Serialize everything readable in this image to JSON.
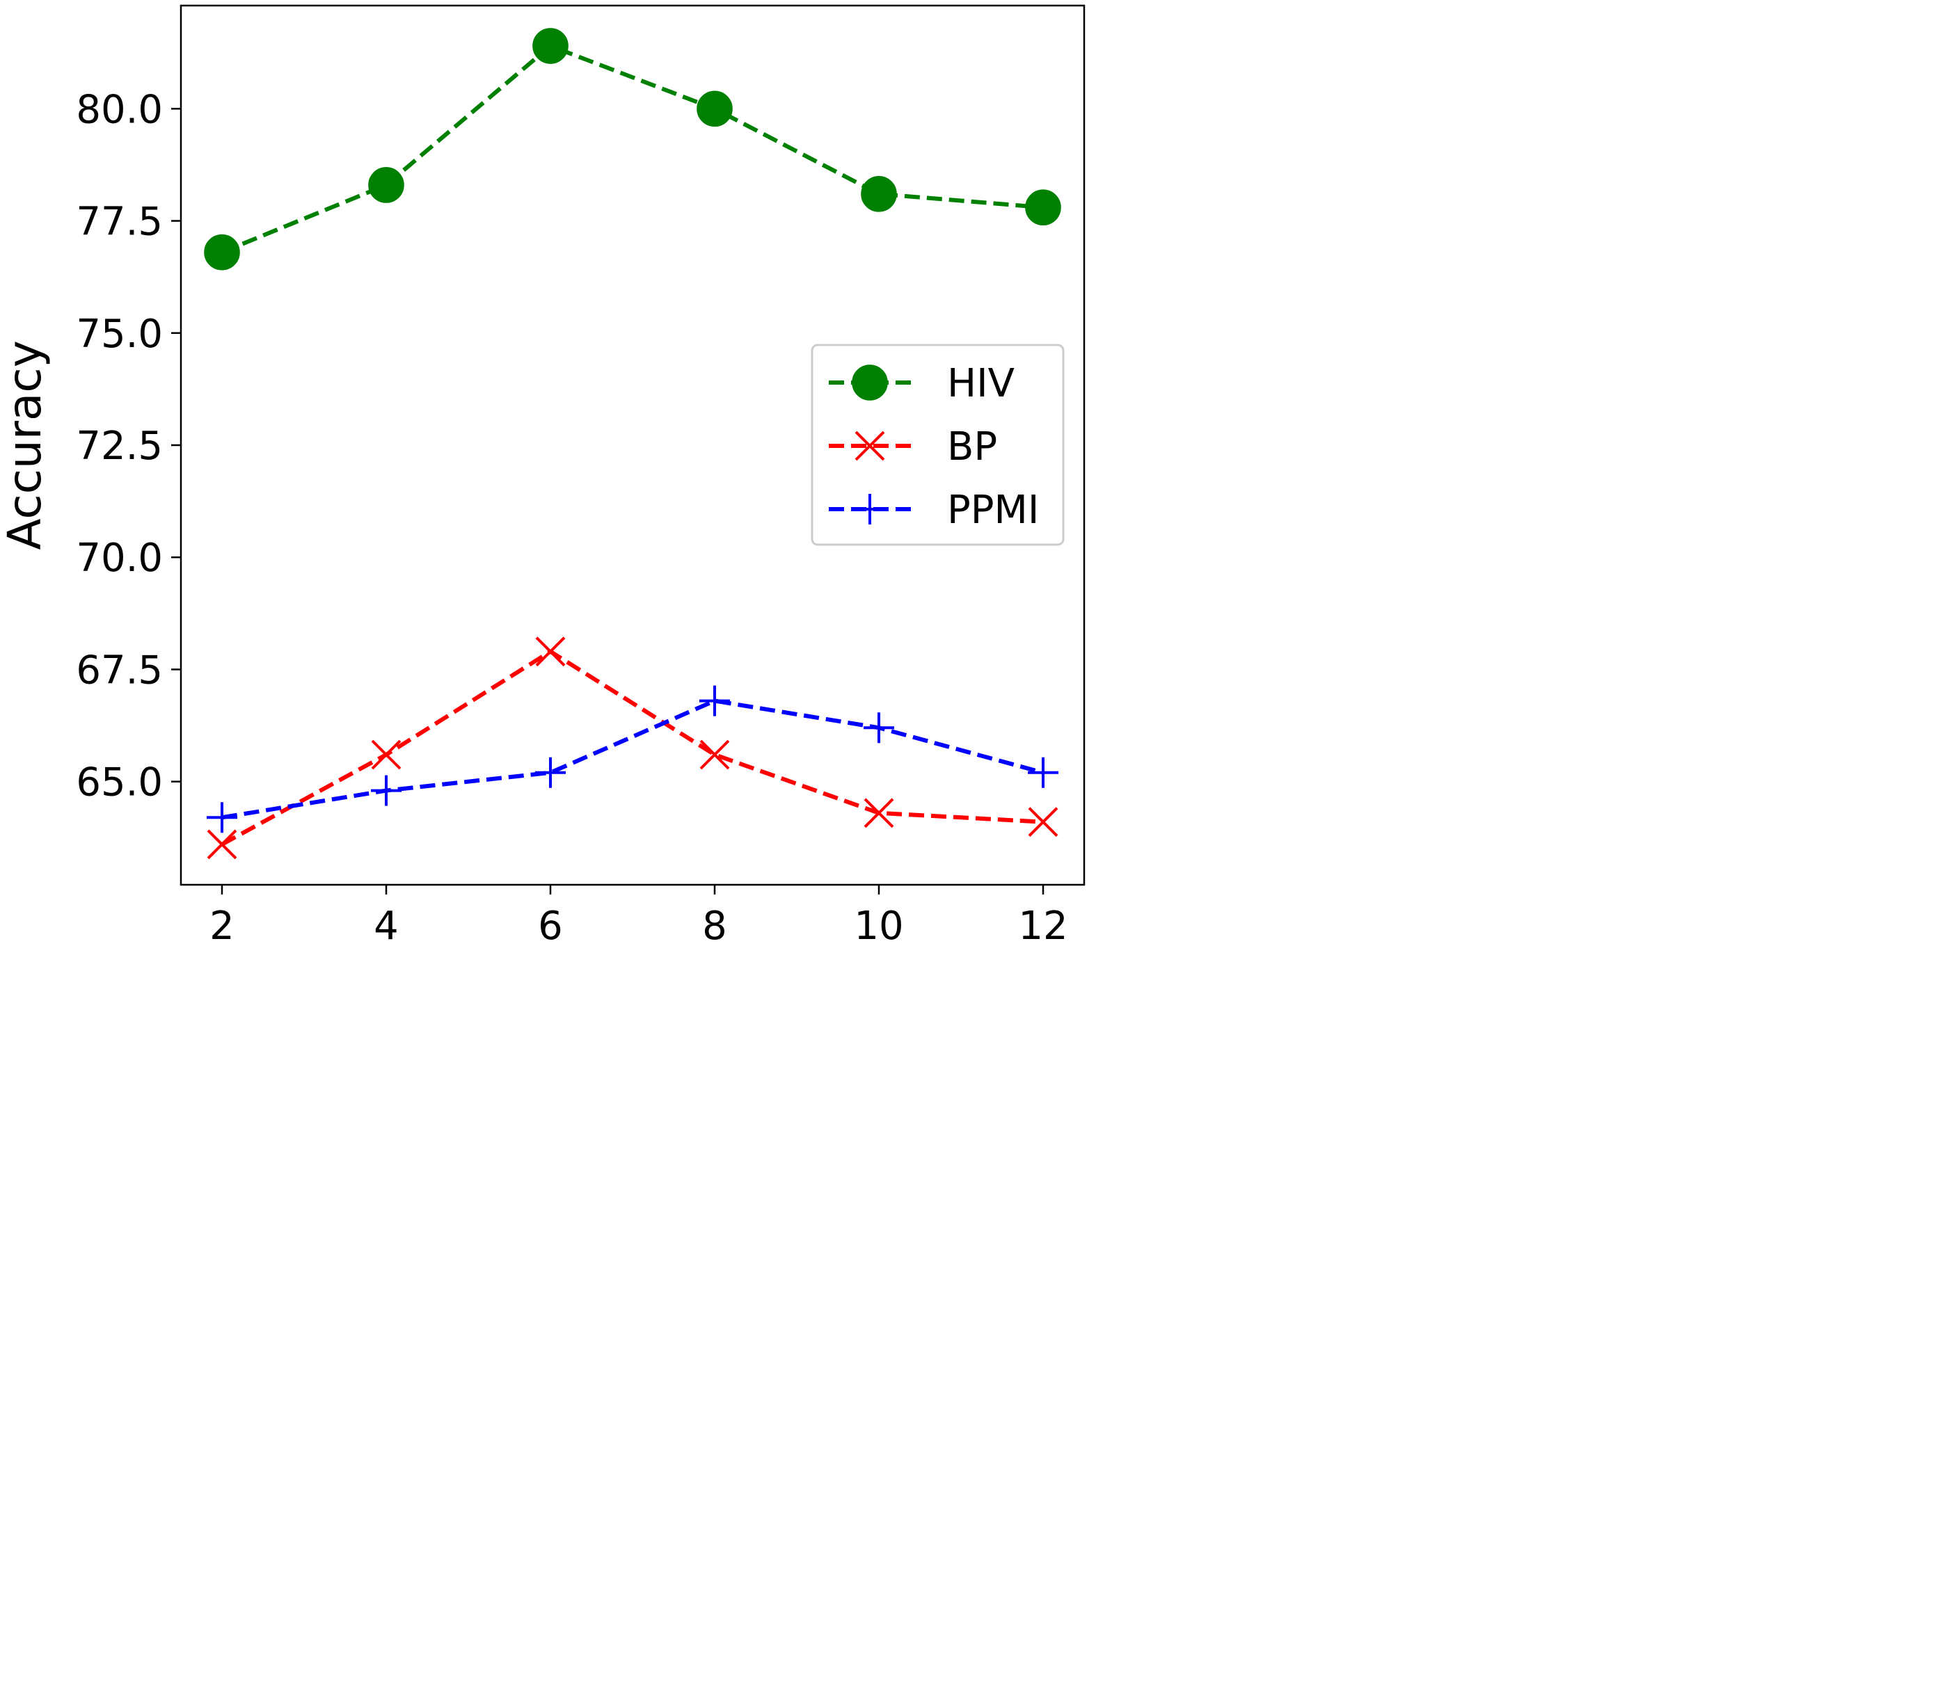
{
  "chart_data": {
    "type": "line",
    "title": "",
    "xlabel": "",
    "ylabel": "Accuracy",
    "x": [
      2,
      4,
      6,
      8,
      10,
      12
    ],
    "xlim": [
      1.5,
      12.5
    ],
    "ylim": [
      62.7,
      82.3
    ],
    "xticks": [
      2,
      4,
      6,
      8,
      10,
      12
    ],
    "xtick_labels": [
      "2",
      "4",
      "6",
      "8",
      "10",
      "12"
    ],
    "yticks": [
      65.0,
      67.5,
      70.0,
      72.5,
      75.0,
      77.5,
      80.0
    ],
    "ytick_labels": [
      "65.0",
      "67.5",
      "70.0",
      "72.5",
      "75.0",
      "77.5",
      "80.0"
    ],
    "grid": false,
    "legend_position": "center-right",
    "series": [
      {
        "name": "HIV",
        "color": "#008000",
        "marker": "circle",
        "linestyle": "dashed",
        "values": [
          76.8,
          78.3,
          81.4,
          80.0,
          78.1,
          77.8
        ]
      },
      {
        "name": "BP",
        "color": "#ff0000",
        "marker": "x",
        "linestyle": "dashed",
        "values": [
          63.6,
          65.6,
          67.9,
          65.6,
          64.3,
          64.1
        ]
      },
      {
        "name": "PPMI",
        "color": "#0000ff",
        "marker": "plus",
        "linestyle": "dashed",
        "values": [
          64.2,
          64.8,
          65.2,
          66.8,
          66.2,
          65.2
        ]
      }
    ]
  }
}
